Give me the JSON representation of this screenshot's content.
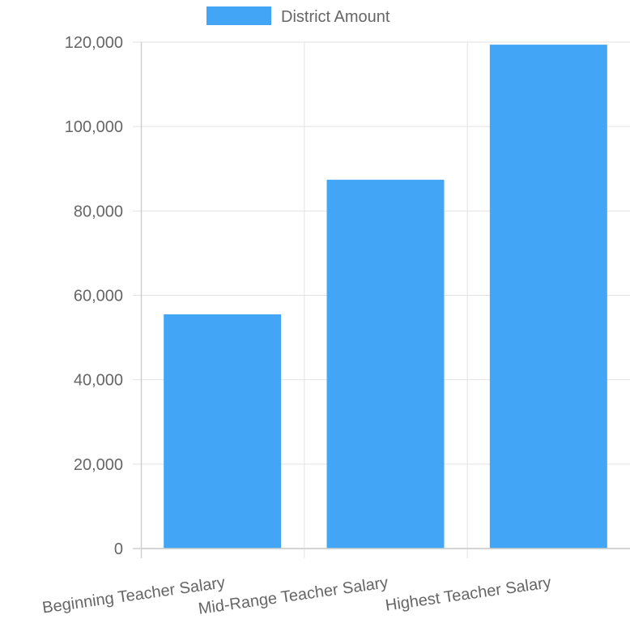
{
  "chart_data": {
    "type": "bar",
    "categories": [
      "Beginning Teacher Salary",
      "Mid-Range Teacher Salary",
      "Highest Teacher Salary"
    ],
    "series": [
      {
        "name": "District Amount",
        "values": [
          55500,
          87400,
          119400
        ],
        "color": "#42a5f5"
      }
    ],
    "ylim": [
      0,
      120000
    ],
    "y_ticks": [
      0,
      20000,
      40000,
      60000,
      80000,
      100000,
      120000
    ],
    "y_tick_labels": [
      "0",
      "20,000",
      "40,000",
      "60,000",
      "80,000",
      "100,000",
      "120,000"
    ],
    "grid": true,
    "legend": {
      "position": "top"
    },
    "title": "",
    "xlabel": "",
    "ylabel": ""
  }
}
